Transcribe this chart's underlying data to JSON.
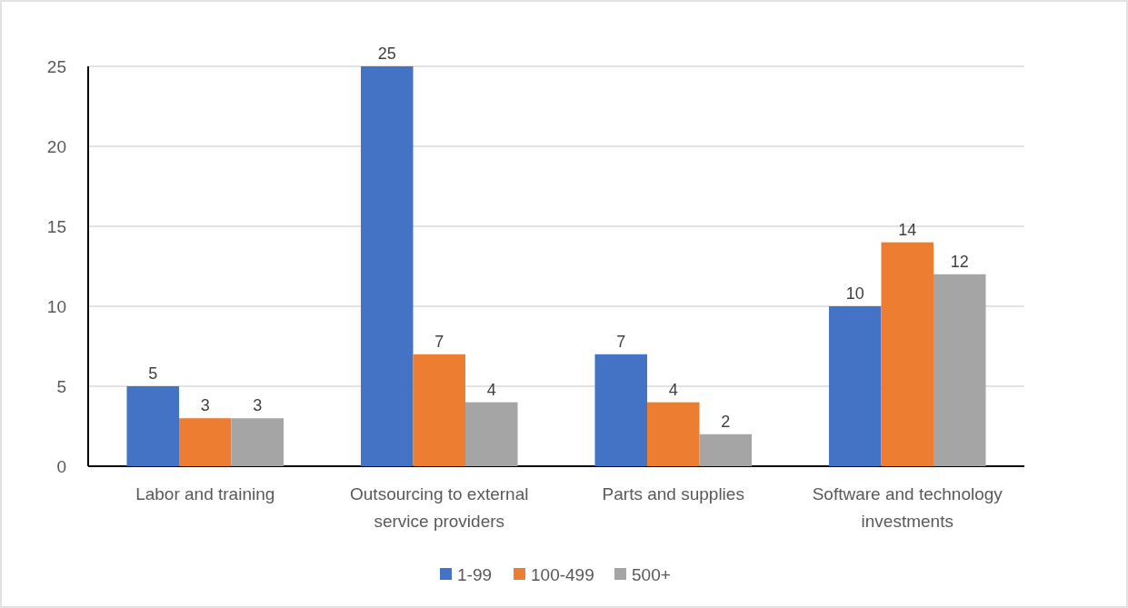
{
  "chart_data": {
    "type": "bar",
    "categories": [
      "Labor and training",
      "Outsourcing to external service providers",
      "Parts and supplies",
      "Software and technology investments"
    ],
    "series": [
      {
        "name": "1-99",
        "color": "#4472c4",
        "values": [
          5,
          25,
          7,
          10
        ]
      },
      {
        "name": "100-499",
        "color": "#ed7d31",
        "values": [
          3,
          7,
          4,
          14
        ]
      },
      {
        "name": "500+",
        "color": "#a5a5a5",
        "values": [
          3,
          4,
          2,
          12
        ]
      }
    ],
    "ylim": [
      0,
      25
    ],
    "yticks": [
      0,
      5,
      10,
      15,
      20,
      25
    ],
    "grid": "y",
    "legend": "bottom",
    "data_labels": true
  }
}
